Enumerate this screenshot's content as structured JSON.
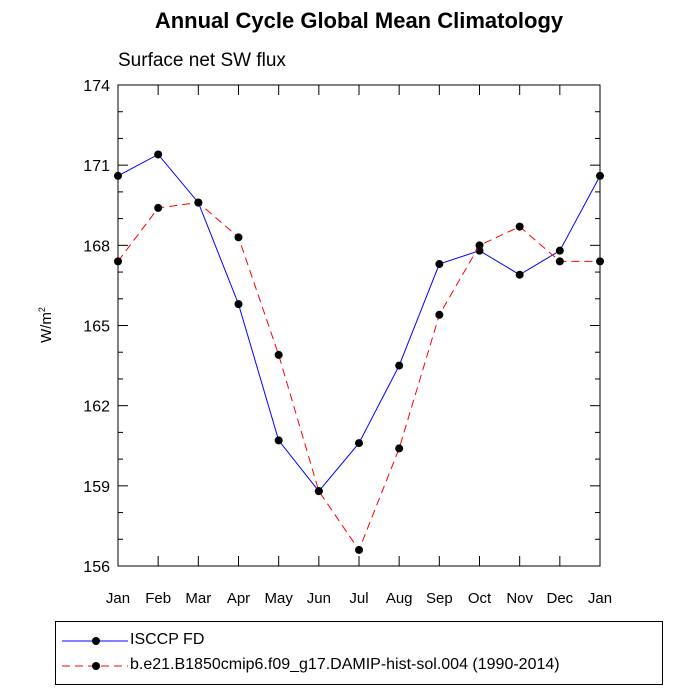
{
  "chart_data": {
    "type": "line",
    "title": "Annual Cycle Global Mean Climatology",
    "subtitle": "Surface net SW flux",
    "ylabel": "W/m",
    "ylabel_sup": "2",
    "ylim": [
      156,
      174
    ],
    "yticks": [
      "156",
      "159",
      "162",
      "165",
      "168",
      "171",
      "174"
    ],
    "categories": [
      "Jan",
      "Feb",
      "Mar",
      "Apr",
      "May",
      "Jun",
      "Jul",
      "Aug",
      "Sep",
      "Oct",
      "Nov",
      "Dec",
      "Jan"
    ],
    "series": [
      {
        "name": "ISCCP FD",
        "color": "#0000ff",
        "dash": "solid",
        "values": [
          170.6,
          171.4,
          169.6,
          165.8,
          160.7,
          158.8,
          160.6,
          163.5,
          167.3,
          167.8,
          166.9,
          167.8,
          170.6
        ]
      },
      {
        "name": "b.e21.B1850cmip6.f09_g17.DAMIP-hist-sol.004 (1990-2014)",
        "color": "#ff0000",
        "dash": "dashed",
        "values": [
          167.4,
          169.4,
          169.6,
          168.3,
          163.9,
          158.8,
          156.6,
          160.4,
          165.4,
          168.0,
          168.7,
          167.4,
          167.4
        ]
      }
    ],
    "grid": false,
    "legend_position": "bottom"
  }
}
